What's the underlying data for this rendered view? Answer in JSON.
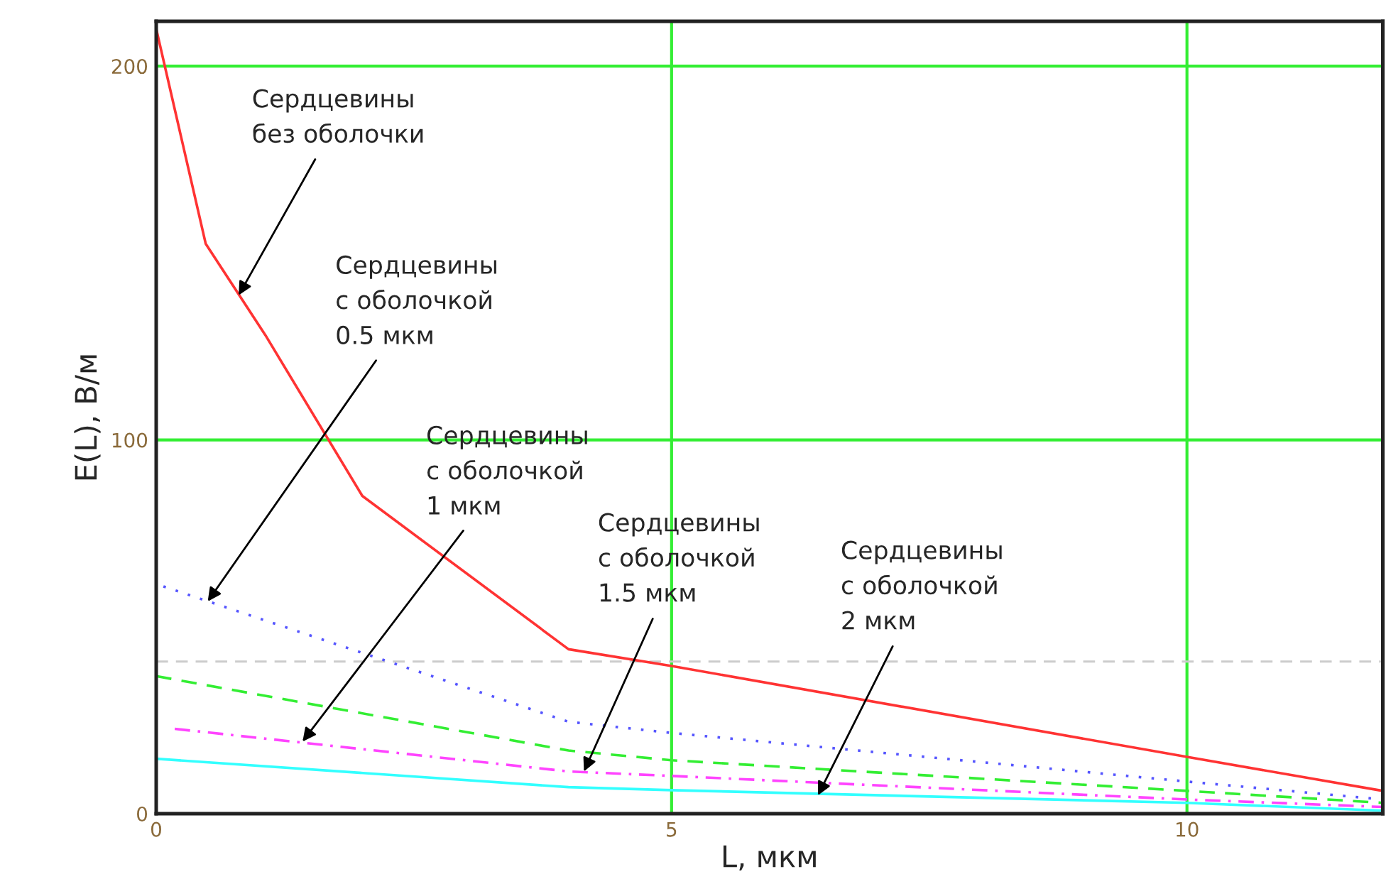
{
  "chart_data": {
    "type": "line",
    "xlabel": "L, мкм",
    "ylabel": "E(L), В/м",
    "xlim": [
      0,
      11.9
    ],
    "ylim": [
      0,
      212
    ],
    "xticks": [
      0,
      5,
      10
    ],
    "yticks": [
      0,
      100,
      200
    ],
    "grid": true,
    "series": [
      {
        "color": "#ff3333",
        "line_style": "solid",
        "x": [
          0,
          0.48,
          1.06,
          2,
          4,
          5,
          10,
          11.9
        ],
        "values": [
          210,
          152.5,
          128,
          85,
          44,
          39.5,
          15.2,
          6.1
        ]
      },
      {
        "color": "#5555ff",
        "line_style": "dotted",
        "x": [
          0.07,
          4,
          5,
          10,
          11.9
        ],
        "values": [
          60.8,
          24.6,
          21.6,
          8.6,
          3.8
        ]
      },
      {
        "color": "#33ee33",
        "line_style": "dashed",
        "x": [
          0,
          4,
          5,
          10,
          11.9
        ],
        "values": [
          36.8,
          16.9,
          14.3,
          6.1,
          2.9
        ]
      },
      {
        "color": "#ff44ff",
        "line_style": "dashdot",
        "x": [
          0.18,
          4,
          5,
          10,
          11.9
        ],
        "values": [
          22.7,
          11.3,
          10.1,
          3.8,
          1.8
        ]
      },
      {
        "color": "#33ffff",
        "line_style": "solid",
        "x": [
          0,
          4,
          5,
          10,
          11.9
        ],
        "values": [
          14.7,
          7.1,
          6.3,
          2.9,
          0.8
        ]
      }
    ],
    "ref_lines": [
      {
        "axis": "y",
        "value": 40.7,
        "color": "#cccccc",
        "line_style": "dashed"
      }
    ],
    "annotations": [
      {
        "text": "Сердцевины\nбез оболочки",
        "x": 0.8,
        "y": 138.7
      },
      {
        "text": "Сердцевины\nс оболочкой\n0.5 мкм",
        "x": 0.5,
        "y": 56.8
      },
      {
        "text": "Сердцевины\nс оболочкой\n1 мкм",
        "x": 1.42,
        "y": 19.3
      },
      {
        "text": "Сердцевины\nс оболочкой\n1.5 мкм",
        "x": 4.15,
        "y": 11.3
      },
      {
        "text": "Сердцевины\nс оболочкой\n2 мкм",
        "x": 6.42,
        "y": 4.9
      }
    ]
  }
}
